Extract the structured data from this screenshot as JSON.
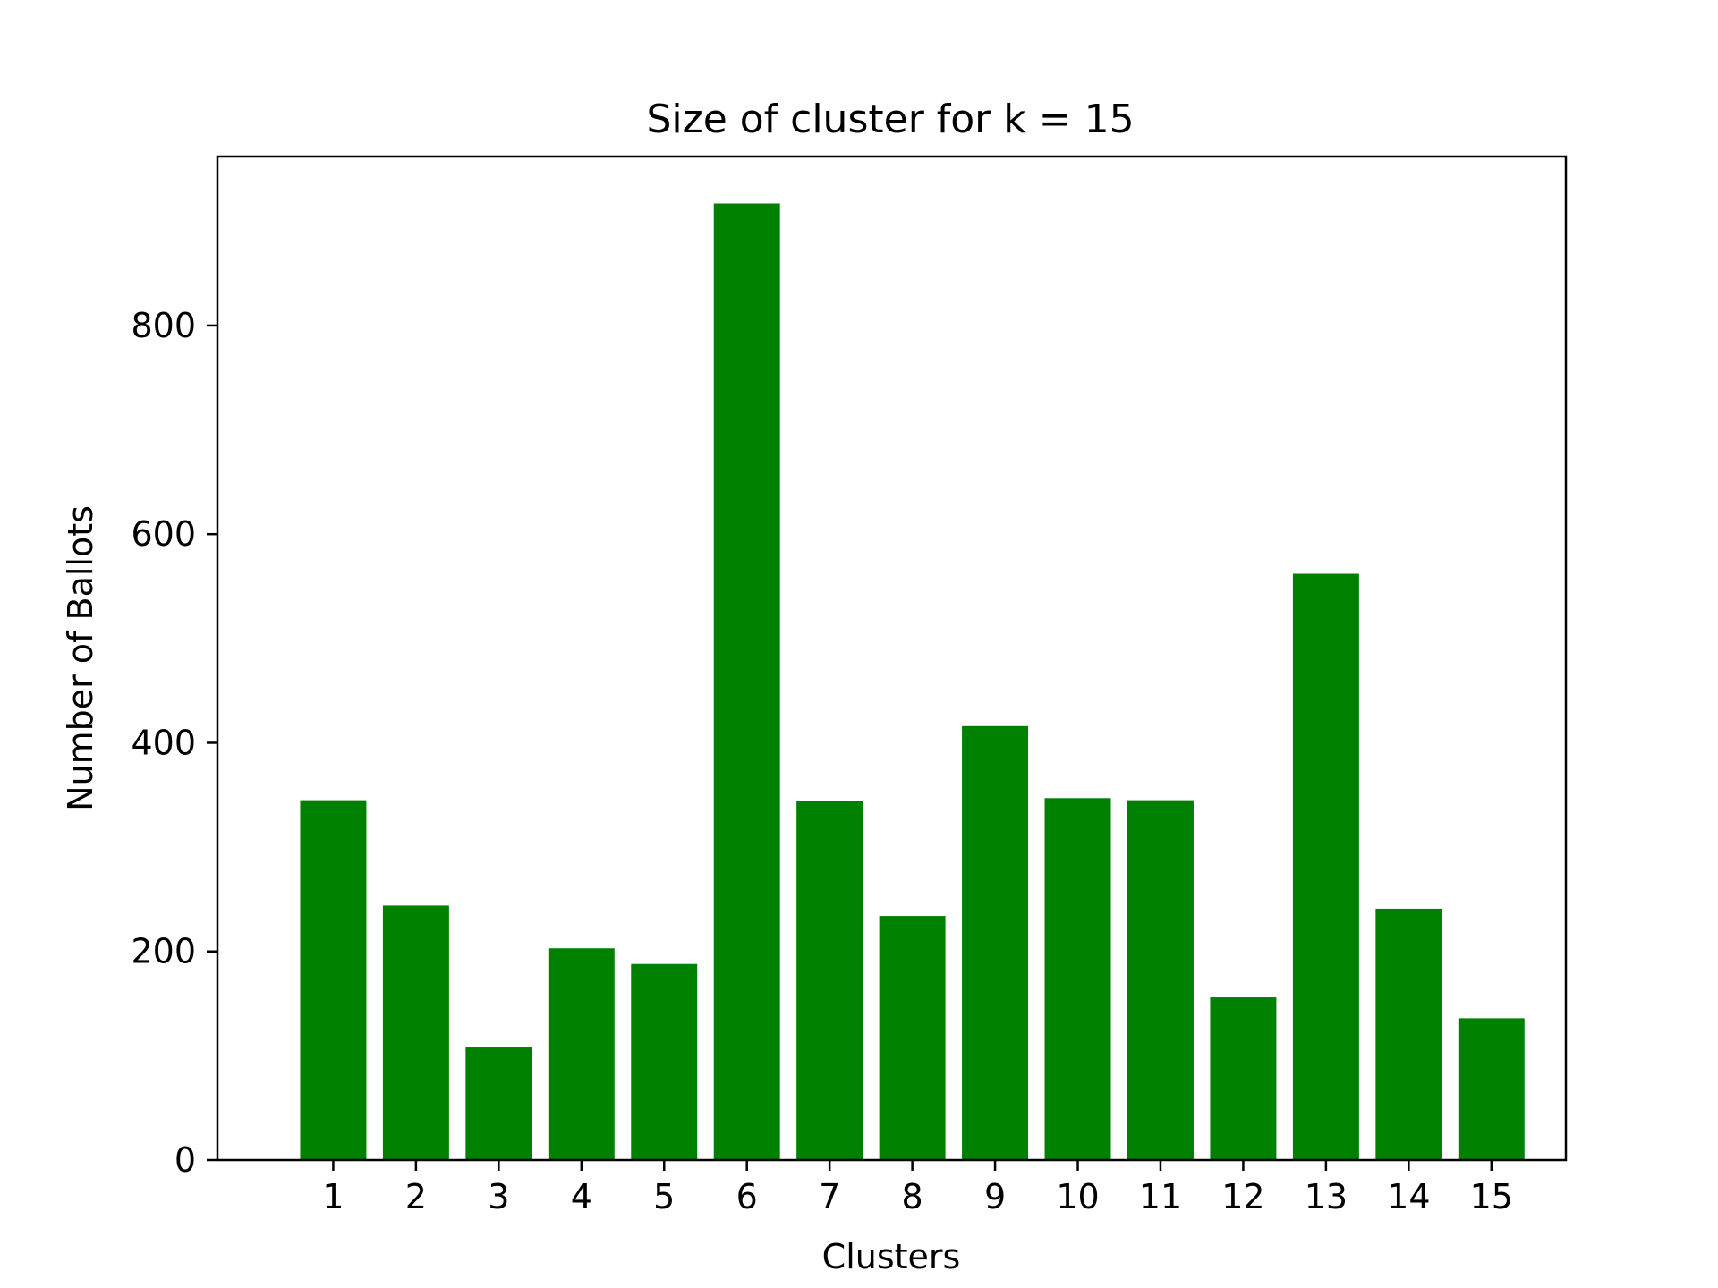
{
  "chart_data": {
    "type": "bar",
    "title": "Size of cluster for k = 15",
    "xlabel": "Clusters",
    "ylabel": "Number of Ballots",
    "categories": [
      "1",
      "2",
      "3",
      "4",
      "5",
      "6",
      "7",
      "8",
      "9",
      "10",
      "11",
      "12",
      "13",
      "14",
      "15"
    ],
    "values": [
      345,
      244,
      108,
      203,
      188,
      917,
      344,
      234,
      416,
      347,
      345,
      156,
      562,
      241,
      136
    ],
    "ylim": [
      0,
      962
    ],
    "yticks": [
      "0",
      "200",
      "400",
      "600",
      "800"
    ],
    "grid": false,
    "bar_color": "#008000"
  }
}
